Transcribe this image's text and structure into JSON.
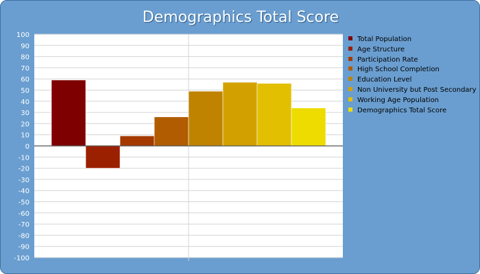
{
  "chart_data": {
    "type": "bar",
    "title": "Demographics Total Score",
    "xlabel": "",
    "ylabel": "",
    "ylim": [
      -100,
      100
    ],
    "ytick_step": 10,
    "grid": true,
    "legend_position": "right",
    "series": [
      {
        "name": "Total Population",
        "value": 59,
        "color": "#7f0000"
      },
      {
        "name": "Age Structure",
        "value": -20,
        "color": "#9b2000"
      },
      {
        "name": "Participation Rate",
        "value": 9,
        "color": "#a43a00"
      },
      {
        "name": "High School Completion",
        "value": 26,
        "color": "#b15c00"
      },
      {
        "name": "Education Level",
        "value": 49,
        "color": "#c08300"
      },
      {
        "name": "Non University but Post Secondary",
        "value": 57,
        "color": "#d2a100"
      },
      {
        "name": "Working Age Population",
        "value": 56,
        "color": "#e2bf00"
      },
      {
        "name": "Demographics Total Score",
        "value": 34,
        "color": "#eedc00"
      }
    ]
  }
}
